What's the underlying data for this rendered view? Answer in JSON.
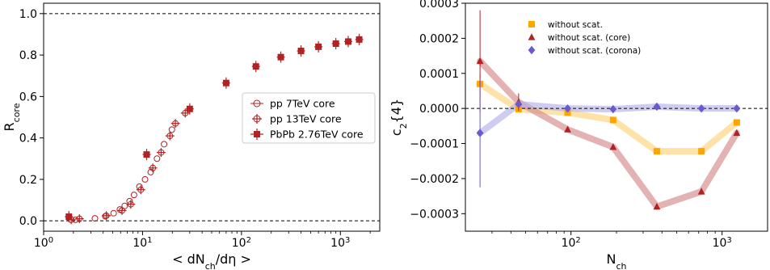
{
  "chart_data": [
    {
      "type": "scatter",
      "title": "",
      "xlabel": "< dN_ch/dη >",
      "ylabel": "R_core",
      "xscale": "log",
      "xlim": [
        1,
        2500
      ],
      "ylim": [
        -0.05,
        1.05
      ],
      "xticks": [
        1,
        10,
        100,
        1000
      ],
      "xtick_labels": [
        "10",
        "10",
        "10",
        "10"
      ],
      "xtick_exponents": [
        "0",
        "1",
        "2",
        "3"
      ],
      "yticks": [
        0.0,
        0.2,
        0.4,
        0.6,
        0.8,
        1.0
      ],
      "ytick_labels": [
        "0.0",
        "0.2",
        "0.4",
        "0.6",
        "0.8",
        "1.0"
      ],
      "reference_lines": [
        0.0,
        1.0
      ],
      "grid": false,
      "legend_position": "right",
      "color": "#b22222",
      "series": [
        {
          "name": "pp 7TeV core",
          "marker": "open-circle",
          "x": [
            2.1,
            3.3,
            4.2,
            5.1,
            5.9,
            6.6,
            7.4,
            8.2,
            9.3,
            10.6,
            12.1,
            14.0,
            16.5,
            19.8
          ],
          "y": [
            0.005,
            0.012,
            0.022,
            0.037,
            0.055,
            0.072,
            0.095,
            0.125,
            0.165,
            0.2,
            0.235,
            0.3,
            0.37,
            0.44
          ]
        },
        {
          "name": "pp 13TeV core",
          "marker": "open-circle-cross",
          "x": [
            1.9,
            2.3,
            4.3,
            6.2,
            7.6,
            9.6,
            12.7,
            15.4,
            18.9,
            21.5,
            27.0
          ],
          "y": [
            0.005,
            0.01,
            0.025,
            0.05,
            0.08,
            0.15,
            0.255,
            0.33,
            0.41,
            0.47,
            0.52
          ]
        },
        {
          "name": "PbPb 2.76TeV core",
          "marker": "filled-square",
          "x": [
            1.8,
            11.0,
            30.0,
            70.0,
            140.0,
            250.0,
            400.0,
            600.0,
            900.0,
            1200.0,
            1550.0
          ],
          "y": [
            0.02,
            0.32,
            0.54,
            0.665,
            0.745,
            0.79,
            0.82,
            0.84,
            0.855,
            0.865,
            0.875
          ]
        }
      ]
    },
    {
      "type": "line",
      "title": "",
      "xlabel": "N_ch",
      "ylabel": "c_2{4}",
      "xscale": "log",
      "xlim": [
        20,
        2000
      ],
      "ylim": [
        -0.00035,
        0.0003
      ],
      "xticks": [
        100,
        1000
      ],
      "xtick_labels": [
        "10",
        "10"
      ],
      "xtick_exponents": [
        "2",
        "3"
      ],
      "yticks": [
        -0.0003,
        -0.0002,
        -0.0001,
        0.0,
        0.0001,
        0.0002,
        0.0003
      ],
      "ytick_labels": [
        "−0.0003",
        "−0.0002",
        "−0.0001",
        "0.0000",
        "0.0001",
        "0.0002",
        "0.0003"
      ],
      "reference_lines": [
        0.0
      ],
      "grid": false,
      "legend_position": "top",
      "x": [
        25,
        45,
        95,
        190,
        370,
        730,
        1250
      ],
      "series": [
        {
          "name": "without scat.",
          "marker": "square",
          "color": "#ffa500",
          "band_color": "#ffd27a",
          "values": [
            7e-05,
            -2e-06,
            -1.2e-05,
            -3.3e-05,
            -0.000122,
            -0.000122,
            -4e-05
          ],
          "errors": [
            3e-05,
            5e-06,
            3e-06,
            3e-06,
            3e-06,
            3e-06,
            3e-06
          ]
        },
        {
          "name": "without scat. (core)",
          "marker": "triangle",
          "color": "#b22222",
          "band_color": "#d48a8a",
          "values": [
            0.000135,
            1.8e-05,
            -6e-05,
            -0.00011,
            -0.00028,
            -0.000237,
            -7e-05
          ],
          "errors": [
            0.000145,
            2.5e-05,
            5e-06,
            5e-06,
            5e-06,
            5e-06,
            5e-06
          ]
        },
        {
          "name": "without scat. (corona)",
          "marker": "diamond",
          "color": "#6a5acd",
          "band_color": "#b5b0ea",
          "values": [
            -7e-05,
            1.2e-05,
            0.0,
            -2e-06,
            5e-06,
            0.0,
            0.0
          ],
          "errors": [
            0.000155,
            1e-05,
            3e-06,
            3e-06,
            3e-06,
            3e-06,
            3e-06
          ]
        }
      ]
    }
  ]
}
